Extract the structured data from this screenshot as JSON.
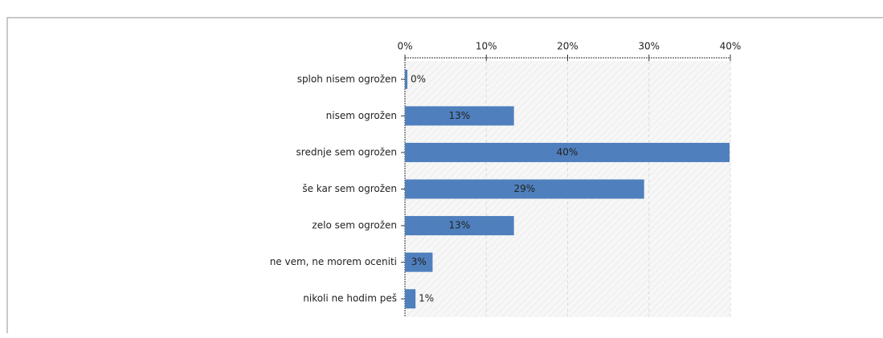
{
  "chart_data": {
    "type": "hbar",
    "categories": [
      "sploh nisem ogrožen",
      "nisem ogrožen",
      "srednje sem ogrožen",
      "še kar sem ogrožen",
      "zelo sem ogrožen",
      "ne vem, ne morem oceniti",
      "nikoli ne hodim peš"
    ],
    "values": [
      0.3,
      13.4,
      39.9,
      29.4,
      13.4,
      3.4,
      1.3
    ],
    "value_labels": [
      "0%",
      "13%",
      "40%",
      "29%",
      "13%",
      "3%",
      "1%"
    ],
    "color": "#4f7fbd",
    "xlim": [
      0,
      40
    ],
    "xticks": [
      {
        "value": 0,
        "label": "0%"
      },
      {
        "value": 10,
        "label": "10%"
      },
      {
        "value": 20,
        "label": "20%"
      },
      {
        "value": 30,
        "label": "30%"
      },
      {
        "value": 40,
        "label": "40%"
      }
    ],
    "grid": true
  }
}
